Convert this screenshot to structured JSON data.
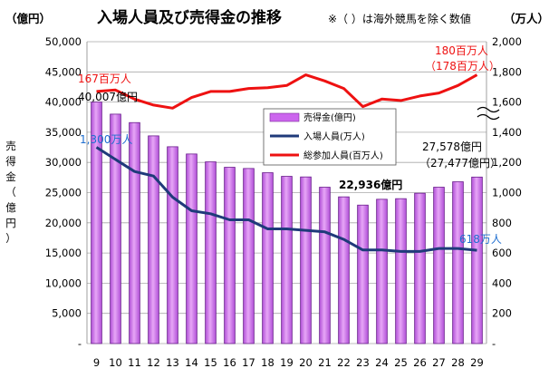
{
  "chart_data": {
    "type": "bar+line",
    "title": "入場人員及び売得金の推移",
    "note": "※（ ）は海外競馬を除く数値",
    "y_left_unit": "（億円）",
    "y_right_unit": "（万人）",
    "y_left_label": [
      "売",
      "得",
      "金",
      "（",
      "億",
      "円",
      "）"
    ],
    "y_left_ticks": [
      "50,000",
      "45,000",
      "40,000",
      "35,000",
      "30,000",
      "25,000",
      "20,000",
      "15,000",
      "10,000",
      "5,000",
      "-"
    ],
    "y_right_ticks": [
      "2,000",
      "1,800",
      "1,600",
      "1,400",
      "1,200",
      "1,000",
      "800",
      "600",
      "400",
      "200",
      "-"
    ],
    "y_left_range": [
      0,
      50000
    ],
    "y_right_range": [
      0,
      2000
    ],
    "categories": [
      "9",
      "10",
      "11",
      "12",
      "13",
      "14",
      "15",
      "16",
      "17",
      "18",
      "19",
      "20",
      "21",
      "22",
      "23",
      "24",
      "25",
      "26",
      "27",
      "28",
      "29"
    ],
    "series": [
      {
        "name": "売得金(億円)",
        "type": "bar",
        "axis": "left",
        "color": "#cc66ee",
        "values": [
          40007,
          38000,
          36600,
          34400,
          32600,
          31400,
          30100,
          29200,
          29000,
          28300,
          27700,
          27600,
          25900,
          24300,
          22936,
          23900,
          24000,
          24900,
          25900,
          26800,
          27578
        ]
      },
      {
        "name": "入場人員(万人)",
        "type": "line",
        "axis": "right",
        "color": "#1f3a7a",
        "values": [
          1300,
          1220,
          1140,
          1110,
          970,
          880,
          860,
          820,
          820,
          760,
          760,
          750,
          740,
          690,
          620,
          620,
          610,
          610,
          630,
          630,
          618
        ]
      },
      {
        "name": "総参加人員(百万人)",
        "type": "line",
        "axis": "right",
        "color": "#ee1111",
        "values": [
          1670,
          1680,
          1620,
          1580,
          1560,
          1630,
          1670,
          1670,
          1690,
          1695,
          1710,
          1780,
          1740,
          1690,
          1570,
          1620,
          1610,
          1640,
          1660,
          1710,
          1780
        ]
      }
    ],
    "annotations": [
      {
        "text": "167百万人",
        "color": "#ee1111"
      },
      {
        "text": "40,007億円",
        "color": "#000000"
      },
      {
        "text": "1,300万人",
        "color": "#1f6fd0"
      },
      {
        "text": "180百万人",
        "color": "#ee1111"
      },
      {
        "text": "（178百万人）",
        "color": "#ee1111"
      },
      {
        "text": "27,578億円",
        "color": "#000000"
      },
      {
        "text": "（27,477億円）",
        "color": "#000000"
      },
      {
        "text": "22,936億円",
        "color": "#000000"
      },
      {
        "text": "618万人",
        "color": "#1f6fd0"
      }
    ],
    "legend_position": "center-right"
  }
}
